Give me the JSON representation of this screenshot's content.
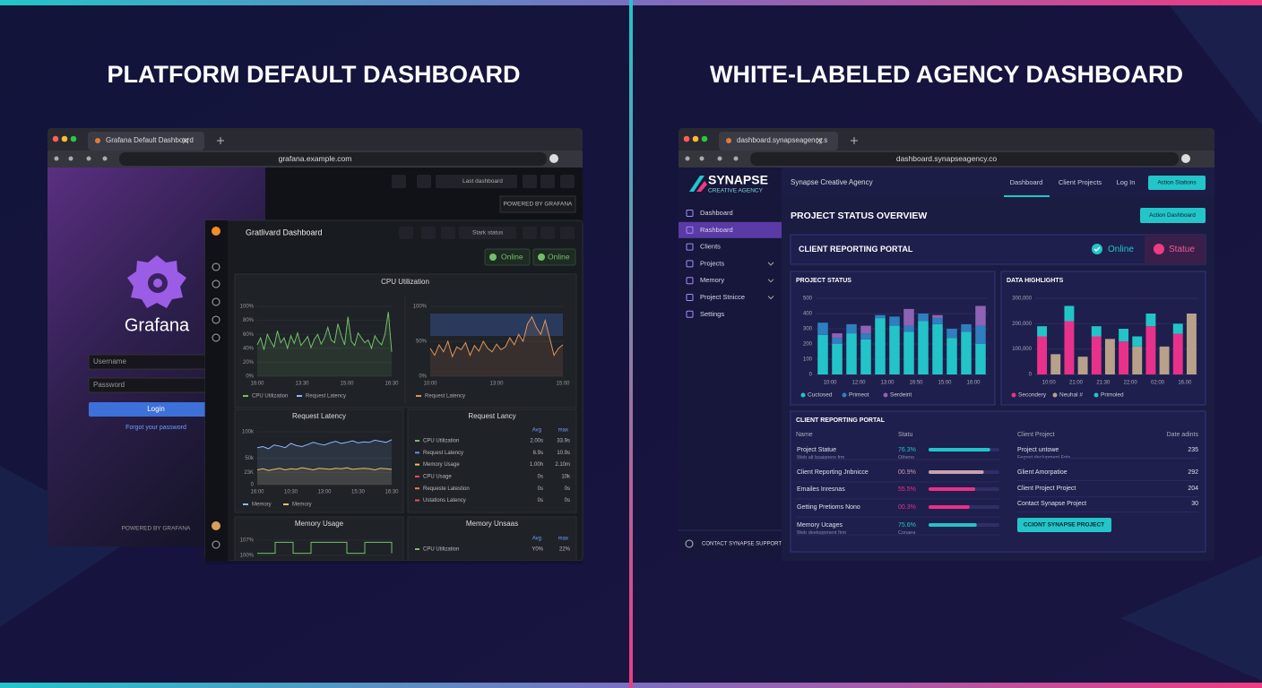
{
  "left": {
    "heading": "PLATFORM DEFAULT DASHBOARD",
    "tab": "Grafana Default Dashboard",
    "url": "grafana.example.com",
    "login": {
      "brand": "Grafana",
      "username": "Username",
      "password": "Password",
      "button": "Login",
      "forgot": "Forgot your password",
      "footer": "POWERED BY GRAFANA"
    },
    "back_toolbar": {
      "select": "Last dashboard",
      "powered": "POWERED BY GRAFANA"
    },
    "front": {
      "title": "Gratlivard Dashboard",
      "select": "Stark status",
      "status": [
        "Online",
        "Online"
      ],
      "cpu_panel": {
        "title": "CPU Utilization",
        "charts": [
          {
            "type": "line",
            "ylim": [
              0,
              100
            ],
            "yticks": [
              {
                "value": 0,
                "label": "0%"
              },
              {
                "value": 20,
                "label": "20%"
              },
              {
                "value": 40,
                "label": "40%"
              },
              {
                "value": 60,
                "label": "60%"
              },
              {
                "value": 80,
                "label": "80%"
              },
              {
                "value": 100,
                "label": "100%"
              }
            ],
            "xtick_labels": [
              "16:00",
              "13:30",
              "15:00",
              "16:30"
            ],
            "series": [
              {
                "name": "CPU Utilization",
                "color": "#73bf69",
                "values": [
                  45,
                  55,
                  38,
                  60,
                  50,
                  42,
                  65,
                  48,
                  55,
                  40,
                  58,
                  47,
                  62,
                  44,
                  50,
                  57,
                  41,
                  53,
                  60,
                  46,
                  55,
                  70,
                  52,
                  48,
                  75,
                  58,
                  45,
                  85,
                  50,
                  44,
                  62,
                  55,
                  48,
                  52,
                  40,
                  58,
                  50,
                  45,
                  60,
                  92,
                  35
                ]
              },
              {
                "name": "Request Latency",
                "color": "#8ab8ff",
                "values": []
              }
            ]
          },
          {
            "type": "line",
            "ylim": [
              0,
              100
            ],
            "yticks": [
              {
                "value": 0,
                "label": "0%"
              },
              {
                "value": 50,
                "label": "50%"
              },
              {
                "value": 100,
                "label": "100%"
              }
            ],
            "xtick_labels": [
              "10:00",
              "13:00",
              "15:00"
            ],
            "series": [
              {
                "name": "Request Latency",
                "color": "#e0945a",
                "values": [
                  40,
                  30,
                  45,
                  35,
                  50,
                  28,
                  42,
                  38,
                  48,
                  30,
                  44,
                  36,
                  50,
                  40,
                  35,
                  46,
                  38,
                  42,
                  55,
                  45,
                  60,
                  50,
                  75,
                  85,
                  70,
                  60,
                  80,
                  55,
                  30,
                  40,
                  45
                ]
              }
            ]
          }
        ]
      },
      "latency_panel": {
        "title": "Request Latency",
        "chart": {
          "type": "line",
          "ylim": [
            0,
            100000
          ],
          "yticks": [
            {
              "value": 0,
              "label": "0"
            },
            {
              "value": 23000,
              "label": "23K"
            },
            {
              "value": 50000,
              "label": "50k"
            },
            {
              "value": 100000,
              "label": "100k"
            }
          ],
          "xtick_labels": [
            "16:00",
            "10:30",
            "13:00",
            "15:30",
            "16:30"
          ],
          "series": [
            {
              "name": "Memory",
              "color": "#8ab8ff",
              "values": [
                70000,
                72000,
                68000,
                75000,
                73000,
                70000,
                78000,
                74000,
                72000,
                76000,
                80000,
                77000,
                75000,
                79000,
                82000,
                78000,
                80000,
                83000,
                79000,
                81000,
                80000,
                84000,
                82000,
                80000,
                85000
              ]
            },
            {
              "name": "Memory",
              "color": "#e8c15a",
              "values": [
                28000,
                30000,
                27000,
                29000,
                31000,
                28000,
                30000,
                29000,
                32000,
                30000,
                28000,
                31000,
                30000,
                29000,
                31000,
                30000,
                32000,
                29000,
                30000,
                31000,
                30000,
                28000,
                31000,
                30000,
                29000
              ]
            }
          ]
        }
      },
      "latency_table": {
        "title": "Request Lancy",
        "headers": [
          "Avg",
          "max"
        ],
        "rows": [
          {
            "name": "CPU Utilization",
            "color": "#73bf69",
            "cells": [
              "2.00s",
              "33.9s"
            ]
          },
          {
            "name": "Request Latency",
            "color": "#5794f2",
            "cells": [
              "6.9s",
              "10.9s"
            ]
          },
          {
            "name": "Memory Usage",
            "color": "#e8c15a",
            "cells": [
              "1.00h",
              "2.10m"
            ]
          },
          {
            "name": "CPU Usage",
            "color": "#f2495c",
            "cells": [
              "0s",
              "10k"
            ]
          },
          {
            "name": "Requeste Latestion",
            "color": "#ff7a45",
            "cells": [
              "0s",
              "0s"
            ]
          },
          {
            "name": "Ustations Latency",
            "color": "#f2495c",
            "cells": [
              "0s",
              "0s"
            ]
          }
        ]
      },
      "memory_panel": {
        "title": "Memory Usage",
        "chart": {
          "type": "line",
          "ylim": [
            100,
            107
          ],
          "yticks": [
            {
              "value": 100,
              "label": "100%"
            },
            {
              "value": 107,
              "label": "107%"
            }
          ],
          "series": [
            {
              "name": "Memory Usage",
              "color": "#73bf69",
              "values": [
                101,
                101,
                106,
                106,
                101,
                101,
                106,
                106,
                106,
                106,
                101,
                101,
                106,
                106,
                106,
                101
              ]
            }
          ]
        }
      },
      "memory_table": {
        "title": "Memory Unsaas",
        "headers": [
          "Avg",
          "max"
        ],
        "rows": [
          {
            "name": "CPU Utilization",
            "color": "#73bf69",
            "cells": [
              "Y0%",
              "22%"
            ]
          }
        ]
      }
    }
  },
  "right": {
    "heading": "WHITE-LABELED AGENCY DASHBOARD",
    "tab": "dashboard.synapseagency.s",
    "url": "dashboard.synapseagency.co",
    "brand": {
      "name": "SYNAPSE",
      "tagline": "CREATIVE AGENCY"
    },
    "header": {
      "title": "Synapse Creative Agency",
      "nav": [
        "Dashboard",
        "Client Projects",
        "Log In"
      ],
      "button": "Action Stations"
    },
    "sidebar": {
      "items": [
        "Dashboard",
        "Rashboard",
        "Clients",
        "Projects",
        "Memory",
        "Project Stnicce",
        "Settings"
      ],
      "active": 1,
      "support": "CONTACT SYNAPSE SUPPORT"
    },
    "page_title": "PROJECT STATUS OVERVIEW",
    "page_button": "Action Dashboard",
    "portal": {
      "title": "CLIENT REPORTING PORTAL",
      "online": "Online",
      "status": "Statue"
    },
    "project_chart": {
      "type": "bar",
      "title": "PROJECT STATUS",
      "categories": [
        "10:00",
        null,
        "12:00",
        null,
        "13:00",
        null,
        "16:50",
        null,
        "15:00",
        null,
        "16:00",
        null
      ],
      "ylim": [
        0,
        500
      ],
      "yticks": [
        0,
        100,
        200,
        300,
        400,
        500
      ],
      "series": [
        {
          "name": "Cuctosed",
          "color": "#22c4c8",
          "values": [
            260,
            200,
            270,
            230,
            370,
            320,
            280,
            350,
            330,
            240,
            280,
            200
          ]
        },
        {
          "name": "Primeot",
          "color": "#2f7fc0",
          "values": [
            80,
            40,
            60,
            40,
            20,
            60,
            40,
            50,
            40,
            60,
            50,
            120
          ]
        },
        {
          "name": "Serdeirit",
          "color": "#8e62b5",
          "values": [
            0,
            30,
            0,
            50,
            0,
            0,
            110,
            0,
            20,
            0,
            0,
            130
          ]
        }
      ]
    },
    "highlights_chart": {
      "type": "bar",
      "title": "DATA HIGHLIGHTS",
      "categories": [
        "10:00",
        null,
        "21:00",
        null,
        "21:30",
        null,
        "22:00",
        null,
        "02:00",
        null,
        "16.00",
        null
      ],
      "ylim": [
        0,
        300000
      ],
      "yticks": [
        0,
        {
          "value": 100000,
          "label": "100,000"
        },
        {
          "value": 200000,
          "label": "200,000"
        },
        {
          "value": 300000,
          "label": "300,000"
        }
      ],
      "series": [
        {
          "name": "Secondery",
          "color": "#e8318a",
          "values": [
            150000,
            0,
            210000,
            0,
            150000,
            0,
            130000,
            0,
            190000,
            0,
            160000,
            0
          ]
        },
        {
          "name": "Neuhal #",
          "color": "#b8a08a",
          "values": [
            0,
            80000,
            0,
            70000,
            0,
            140000,
            0,
            110000,
            0,
            110000,
            0,
            240000
          ]
        },
        {
          "name": "Primoled",
          "color": "#22c4c8",
          "values": [
            40000,
            0,
            60000,
            0,
            40000,
            0,
            50000,
            40000,
            50000,
            0,
            40000,
            0
          ]
        }
      ]
    },
    "table": {
      "title": "CLIENT REPORTING PORTAL",
      "headers": [
        "Name",
        "Statu"
      ],
      "rows": [
        {
          "name": "Project Statue",
          "sub": "Web alt bsaigners frm",
          "pct": "76.3%",
          "pct_sub": "Otheno",
          "progress": 87,
          "color": "#22c4c8"
        },
        {
          "name": "Client Reporting Jnbnicce",
          "pct": "00.9%",
          "progress": 78,
          "color": "#c9a0b0"
        },
        {
          "name": "Emailes Inresnas",
          "pct": "55.5%",
          "progress": 66,
          "color": "#e8318a"
        },
        {
          "name": "Getting Pretioms Nono",
          "pct": "00.3%",
          "progress": 58,
          "color": "#e8318a"
        },
        {
          "name": "Memory Ucages",
          "sub": "Web deeloppment firm",
          "pct": "75.6%",
          "pct_sub": "Conaea",
          "progress": 68,
          "color": "#22c4c8"
        }
      ],
      "side_headers": [
        "Client Project",
        "Date adints"
      ],
      "side_rows": [
        {
          "name": "Project untowe",
          "sub": "Fegnet declupment Fnts",
          "value": 235
        },
        {
          "name": "Glient Amorpatioe",
          "value": 292
        },
        {
          "name": "Client Project Project",
          "value": 204
        },
        {
          "name": "Contact Synapse Project",
          "value": 30
        }
      ],
      "button": "CCIONT SYNAPSE PROJECT"
    }
  }
}
